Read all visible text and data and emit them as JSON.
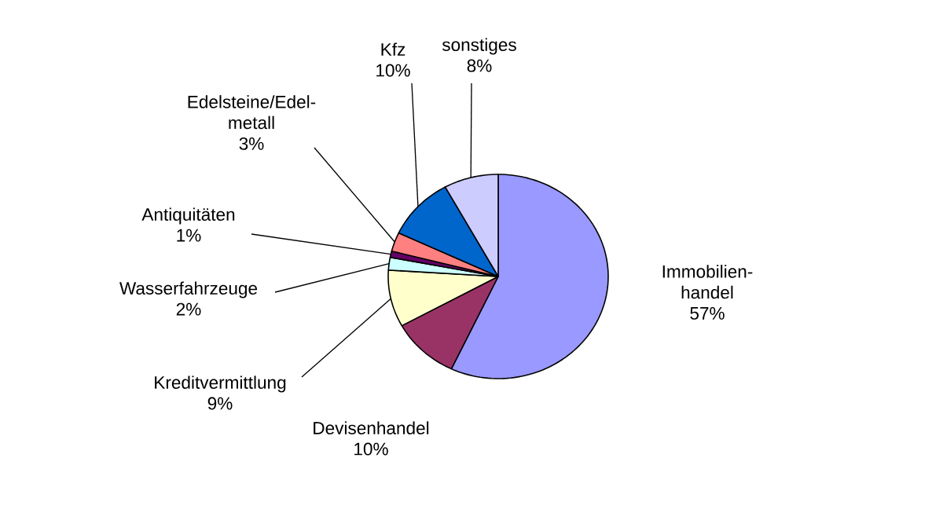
{
  "chart_data": {
    "type": "pie",
    "categories": [
      "Immobilien-handel",
      "Devisenhandel",
      "Kreditvermittlung",
      "Wasserfahrzeuge",
      "Antiquitäten",
      "Edelsteine/Edel-metall",
      "Kfz",
      "sonstiges"
    ],
    "values": [
      57,
      10,
      9,
      2,
      1,
      3,
      10,
      8
    ],
    "value_labels": [
      "57%",
      "10%",
      "9%",
      "2%",
      "1%",
      "3%",
      "10%",
      "8%"
    ],
    "colors": [
      "#9999ff",
      "#993366",
      "#ffffcc",
      "#ccffff",
      "#660066",
      "#ff8080",
      "#0066cc",
      "#ccccff"
    ]
  }
}
